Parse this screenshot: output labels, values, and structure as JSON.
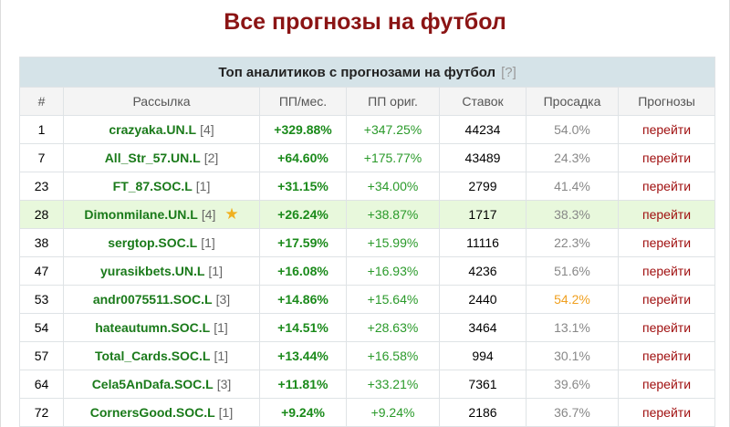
{
  "header": {
    "title": "Все прогнозы на футбол"
  },
  "table": {
    "caption": "Топ аналитиков с прогнозами на футбол",
    "help": "[?]",
    "columns": [
      "#",
      "Рассылка",
      "ПП/мес.",
      "ПП ориг.",
      "Ставок",
      "Просадка",
      "Прогнозы"
    ],
    "rows": [
      {
        "rank": "1",
        "name": "crazyaka.UN.L",
        "count": "[4]",
        "pp_month": "+329.88%",
        "pp_orig": "+347.25%",
        "bets": "44234",
        "drawdown": "54.0%",
        "link": "перейти"
      },
      {
        "rank": "7",
        "name": "All_Str_57.UN.L",
        "count": "[2]",
        "pp_month": "+64.60%",
        "pp_orig": "+175.77%",
        "bets": "43489",
        "drawdown": "24.3%",
        "link": "перейти"
      },
      {
        "rank": "23",
        "name": "FT_87.SOC.L",
        "count": "[1]",
        "pp_month": "+31.15%",
        "pp_orig": "+34.00%",
        "bets": "2799",
        "drawdown": "41.4%",
        "link": "перейти"
      },
      {
        "rank": "28",
        "name": "Dimonmilane.UN.L",
        "count": "[4]",
        "pp_month": "+26.24%",
        "pp_orig": "+38.87%",
        "bets": "1717",
        "drawdown": "38.3%",
        "link": "перейти",
        "highlight": true,
        "starred": true
      },
      {
        "rank": "38",
        "name": "sergtop.SOC.L",
        "count": "[1]",
        "pp_month": "+17.59%",
        "pp_orig": "+15.99%",
        "bets": "11116",
        "drawdown": "22.3%",
        "link": "перейти"
      },
      {
        "rank": "47",
        "name": "yurasikbets.UN.L",
        "count": "[1]",
        "pp_month": "+16.08%",
        "pp_orig": "+16.93%",
        "bets": "4236",
        "drawdown": "51.6%",
        "link": "перейти"
      },
      {
        "rank": "53",
        "name": "andr0075511.SOC.L",
        "count": "[3]",
        "pp_month": "+14.86%",
        "pp_orig": "+15.64%",
        "bets": "2440",
        "drawdown": "54.2%",
        "link": "перейти",
        "drawdown_warning": true
      },
      {
        "rank": "54",
        "name": "hateautumn.SOC.L",
        "count": "[1]",
        "pp_month": "+14.51%",
        "pp_orig": "+28.63%",
        "bets": "3464",
        "drawdown": "13.1%",
        "link": "перейти"
      },
      {
        "rank": "57",
        "name": "Total_Cards.SOC.L",
        "count": "[1]",
        "pp_month": "+13.44%",
        "pp_orig": "+16.58%",
        "bets": "994",
        "drawdown": "30.1%",
        "link": "перейти"
      },
      {
        "rank": "64",
        "name": "Cela5AnDafa.SOC.L",
        "count": "[3]",
        "pp_month": "+11.81%",
        "pp_orig": "+33.21%",
        "bets": "7361",
        "drawdown": "39.6%",
        "link": "перейти"
      },
      {
        "rank": "72",
        "name": "CornersGood.SOC.L",
        "count": "[1]",
        "pp_month": "+9.24%",
        "pp_orig": "+9.24%",
        "bets": "2186",
        "drawdown": "36.7%",
        "link": "перейти"
      }
    ]
  }
}
